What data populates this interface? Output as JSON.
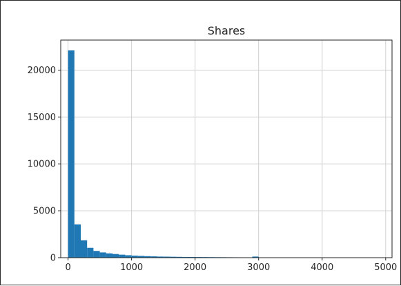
{
  "chart_data": {
    "type": "bar",
    "title": "Shares",
    "xlabel": "",
    "ylabel": "",
    "xlim": [
      -115,
      5100
    ],
    "ylim": [
      0,
      23200
    ],
    "bin_width": 100,
    "grid": true,
    "bar_color": "#1f77b4",
    "xticks": [
      0,
      1000,
      2000,
      3000,
      4000,
      5000
    ],
    "xtick_labels": [
      "0",
      "1000",
      "2000",
      "3000",
      "4000",
      "5000"
    ],
    "yticks": [
      0,
      5000,
      10000,
      15000,
      20000
    ],
    "ytick_labels": [
      "0",
      "5000",
      "10000",
      "15000",
      "20000"
    ],
    "bins": [
      0,
      100,
      200,
      300,
      400,
      500,
      600,
      700,
      800,
      900,
      1000,
      1100,
      1200,
      1300,
      1400,
      1500,
      1600,
      1700,
      1800,
      1900,
      2000,
      2100,
      2200,
      2300,
      2400,
      2500,
      2600,
      2700,
      2800,
      2900
    ],
    "values": [
      22100,
      3550,
      1850,
      1050,
      720,
      560,
      460,
      390,
      320,
      260,
      220,
      190,
      160,
      140,
      120,
      110,
      100,
      90,
      80,
      75,
      70,
      65,
      60,
      55,
      50,
      45,
      40,
      38,
      35,
      120
    ]
  }
}
